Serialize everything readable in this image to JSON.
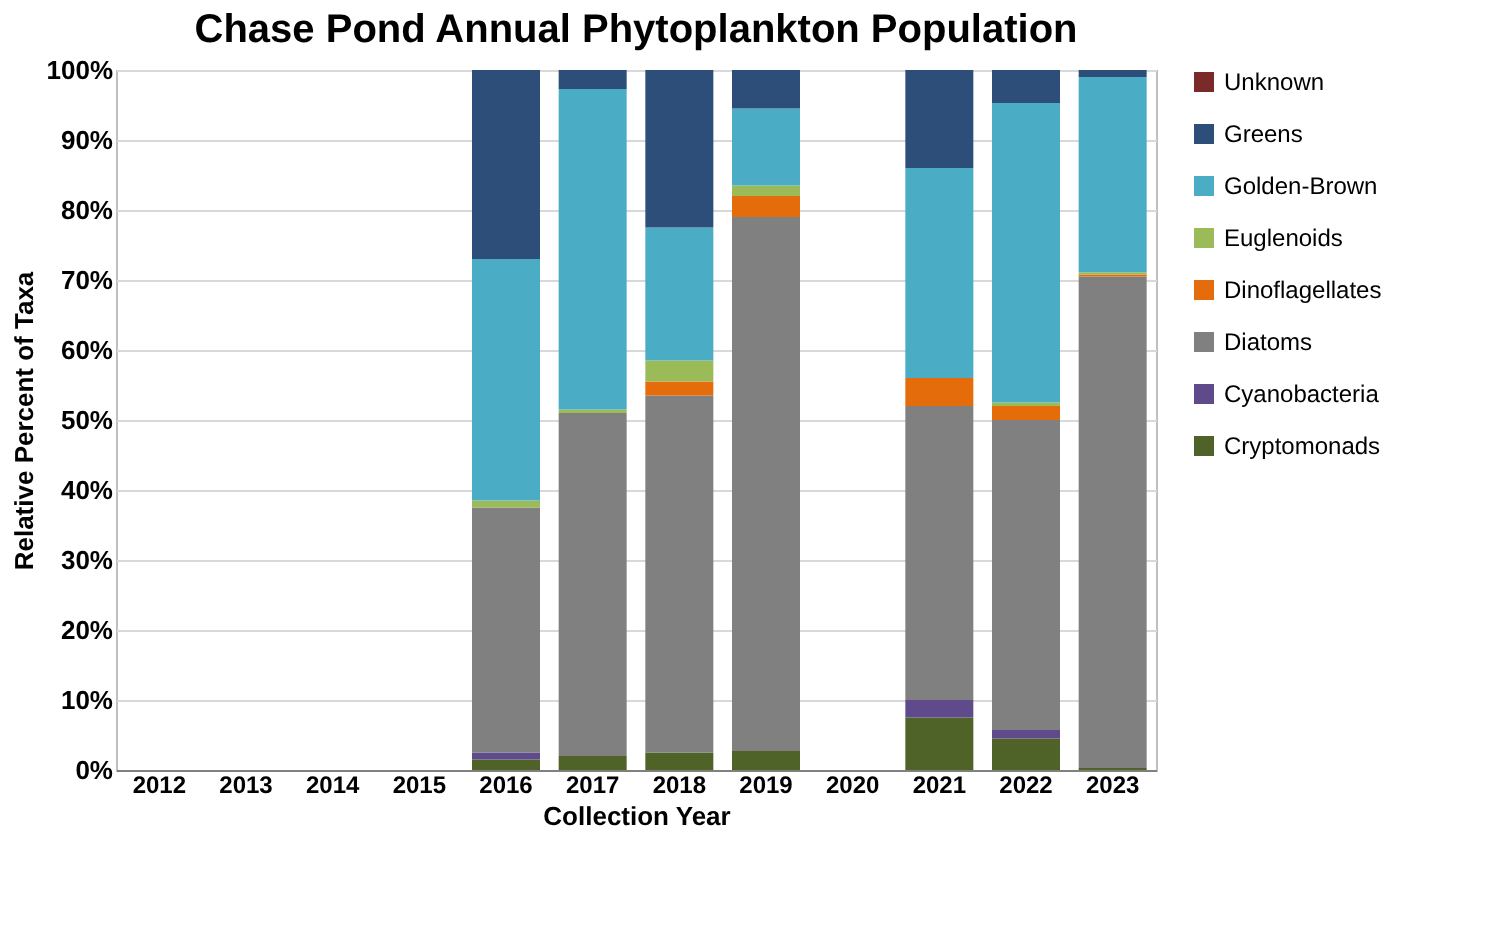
{
  "chart_data": {
    "type": "bar",
    "stacked": true,
    "title": "Chase Pond Annual Phytoplankton Population",
    "xlabel": "Collection Year",
    "ylabel": "Relative Percent of Taxa",
    "categories": [
      "2012",
      "2013",
      "2014",
      "2015",
      "2016",
      "2017",
      "2018",
      "2019",
      "2020",
      "2021",
      "2022",
      "2023"
    ],
    "series": [
      {
        "name": "Cryptomonads",
        "color": "#4f6228",
        "values": [
          null,
          null,
          null,
          null,
          1.5,
          2,
          2.5,
          2.7,
          null,
          7.5,
          4.5,
          0.3
        ]
      },
      {
        "name": "Cyanobacteria",
        "color": "#5f4b8b",
        "values": [
          null,
          null,
          null,
          null,
          1,
          0,
          0,
          0,
          null,
          2.5,
          1.2,
          0
        ]
      },
      {
        "name": "Diatoms",
        "color": "#808080",
        "values": [
          null,
          null,
          null,
          null,
          35,
          49,
          51,
          76.3,
          null,
          42,
          44.3,
          70.2
        ]
      },
      {
        "name": "Dinoflagellates",
        "color": "#e46c0a",
        "values": [
          null,
          null,
          null,
          null,
          0,
          0,
          2,
          3,
          null,
          4,
          2,
          0.3
        ]
      },
      {
        "name": "Euglenoids",
        "color": "#9bbb59",
        "values": [
          null,
          null,
          null,
          null,
          1,
          0.5,
          3,
          1.5,
          null,
          0,
          0.5,
          0.3
        ]
      },
      {
        "name": "Golden-Brown",
        "color": "#4bacc6",
        "values": [
          null,
          null,
          null,
          null,
          34.5,
          45.8,
          19,
          11,
          null,
          30,
          42.8,
          27.9
        ]
      },
      {
        "name": "Greens",
        "color": "#2e4e7a",
        "values": [
          null,
          null,
          null,
          null,
          27,
          2.7,
          22.5,
          5.5,
          null,
          14,
          4.7,
          1
        ]
      },
      {
        "name": "Unknown",
        "color": "#7b2a2a",
        "values": [
          null,
          null,
          null,
          null,
          0,
          0,
          0,
          0,
          null,
          0,
          0,
          0
        ]
      }
    ],
    "ylim": [
      0,
      100
    ],
    "yticks": [
      {
        "value": 0,
        "label": "0%"
      },
      {
        "value": 10,
        "label": "10%"
      },
      {
        "value": 20,
        "label": "20%"
      },
      {
        "value": 30,
        "label": "30%"
      },
      {
        "value": 40,
        "label": "40%"
      },
      {
        "value": 50,
        "label": "50%"
      },
      {
        "value": 60,
        "label": "60%"
      },
      {
        "value": 70,
        "label": "70%"
      },
      {
        "value": 80,
        "label": "80%"
      },
      {
        "value": 90,
        "label": "90%"
      },
      {
        "value": 100,
        "label": "100%"
      }
    ],
    "grid": "y",
    "legend": "right"
  }
}
